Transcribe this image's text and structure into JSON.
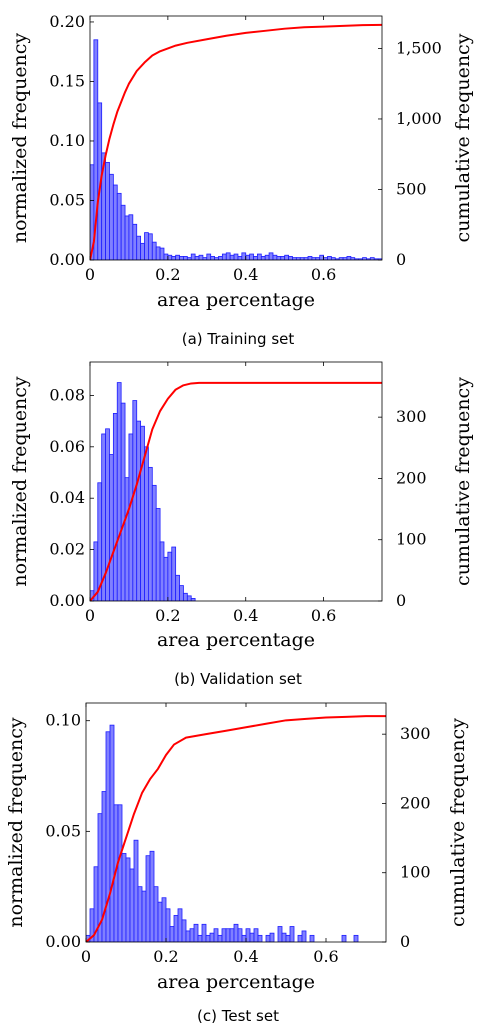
{
  "style": {
    "bar_fill": "#8080ff",
    "bar_stroke": "#1c1cff",
    "cumulative_line": "#ff0000"
  },
  "chart_data": [
    {
      "type": "bar",
      "caption": "(a) Training set",
      "xlabel": "area percentage",
      "ylabel": "normalized frequency",
      "y2label": "cumulative frequency",
      "xlim": [
        0,
        0.75
      ],
      "ylim": [
        0,
        0.205
      ],
      "y2lim": [
        0,
        1730
      ],
      "xticks": [
        0,
        0.2,
        0.4,
        0.6
      ],
      "xtick_labels": [
        "0",
        "0.2",
        "0.4",
        "0.6"
      ],
      "yticks": [
        0,
        0.05,
        0.1,
        0.15,
        0.2
      ],
      "ytick_labels": [
        "0.00",
        "0.05",
        "0.10",
        "0.15",
        "0.20"
      ],
      "y2ticks": [
        0,
        500,
        1000,
        1500
      ],
      "y2tick_labels": [
        "0",
        "500",
        "1,000",
        "1,500"
      ],
      "bin_width": 0.01,
      "series": [
        {
          "type": "bar",
          "x": [
            0.005,
            0.015,
            0.025,
            0.035,
            0.045,
            0.055,
            0.065,
            0.075,
            0.085,
            0.095,
            0.105,
            0.115,
            0.125,
            0.135,
            0.145,
            0.155,
            0.165,
            0.175,
            0.185,
            0.195,
            0.205,
            0.215,
            0.225,
            0.235,
            0.245,
            0.255,
            0.265,
            0.275,
            0.285,
            0.295,
            0.305,
            0.315,
            0.325,
            0.335,
            0.345,
            0.355,
            0.365,
            0.375,
            0.385,
            0.395,
            0.405,
            0.415,
            0.425,
            0.435,
            0.445,
            0.455,
            0.465,
            0.475,
            0.485,
            0.495,
            0.505,
            0.515,
            0.525,
            0.535,
            0.545,
            0.555,
            0.565,
            0.575,
            0.585,
            0.595,
            0.605,
            0.615,
            0.625,
            0.635,
            0.645,
            0.655,
            0.665,
            0.675,
            0.685,
            0.695,
            0.705,
            0.715,
            0.725,
            0.735,
            0.745
          ],
          "values": [
            0.08,
            0.185,
            0.132,
            0.09,
            0.082,
            0.072,
            0.063,
            0.056,
            0.046,
            0.037,
            0.038,
            0.03,
            0.02,
            0.014,
            0.023,
            0.022,
            0.015,
            0.011,
            0.01,
            0.005,
            0.004,
            0.003,
            0.004,
            0.003,
            0.003,
            0.002,
            0.005,
            0.003,
            0.004,
            0.002,
            0.005,
            0.003,
            0.002,
            0.003,
            0.005,
            0.006,
            0.004,
            0.005,
            0.003,
            0.006,
            0.004,
            0.005,
            0.003,
            0.005,
            0.003,
            0.004,
            0.006,
            0.004,
            0.003,
            0.003,
            0.004,
            0.003,
            0.002,
            0.002,
            0.002,
            0.002,
            0.003,
            0.002,
            0.002,
            0.004,
            0.002,
            0.003,
            0.002,
            0.001,
            0.002,
            0.002,
            0.003,
            0.002,
            0.001,
            0.001,
            0.002,
            0.001,
            0.002,
            0.001,
            0.001
          ]
        },
        {
          "type": "line",
          "axis": "right",
          "x": [
            0,
            0.01,
            0.02,
            0.03,
            0.04,
            0.05,
            0.06,
            0.07,
            0.08,
            0.09,
            0.1,
            0.12,
            0.14,
            0.16,
            0.18,
            0.2,
            0.22,
            0.25,
            0.3,
            0.35,
            0.4,
            0.45,
            0.5,
            0.55,
            0.6,
            0.65,
            0.7,
            0.75
          ],
          "values": [
            0,
            130,
            410,
            600,
            740,
            860,
            960,
            1050,
            1120,
            1190,
            1250,
            1340,
            1400,
            1450,
            1480,
            1500,
            1520,
            1540,
            1565,
            1590,
            1610,
            1625,
            1640,
            1650,
            1655,
            1660,
            1665,
            1667
          ]
        }
      ]
    },
    {
      "type": "bar",
      "caption": "(b) Validation set",
      "xlabel": "area percentage",
      "ylabel": "normalized frequency",
      "y2label": "cumulative frequency",
      "xlim": [
        0,
        0.75
      ],
      "ylim": [
        0,
        0.093
      ],
      "y2lim": [
        0,
        390
      ],
      "xticks": [
        0,
        0.2,
        0.4,
        0.6
      ],
      "xtick_labels": [
        "0",
        "0.2",
        "0.4",
        "0.6"
      ],
      "yticks": [
        0,
        0.02,
        0.04,
        0.06,
        0.08
      ],
      "ytick_labels": [
        "0.00",
        "0.02",
        "0.04",
        "0.06",
        "0.08"
      ],
      "y2ticks": [
        0,
        100,
        200,
        300
      ],
      "y2tick_labels": [
        "0",
        "100",
        "200",
        "300"
      ],
      "bin_width": 0.01,
      "series": [
        {
          "type": "bar",
          "x": [
            0.005,
            0.015,
            0.025,
            0.035,
            0.045,
            0.055,
            0.065,
            0.075,
            0.085,
            0.095,
            0.105,
            0.115,
            0.125,
            0.135,
            0.145,
            0.155,
            0.165,
            0.175,
            0.185,
            0.195,
            0.205,
            0.215,
            0.225,
            0.235,
            0.245,
            0.255,
            0.265
          ],
          "values": [
            0.004,
            0.023,
            0.046,
            0.065,
            0.067,
            0.057,
            0.073,
            0.085,
            0.077,
            0.048,
            0.065,
            0.078,
            0.07,
            0.068,
            0.06,
            0.052,
            0.045,
            0.036,
            0.023,
            0.017,
            0.019,
            0.021,
            0.01,
            0.006,
            0.003,
            0.002,
            0.001
          ]
        },
        {
          "type": "line",
          "axis": "right",
          "x": [
            0,
            0.02,
            0.04,
            0.06,
            0.08,
            0.1,
            0.12,
            0.14,
            0.16,
            0.18,
            0.2,
            0.22,
            0.24,
            0.26,
            0.28,
            0.3,
            0.75
          ],
          "values": [
            0,
            15,
            45,
            80,
            115,
            150,
            190,
            235,
            280,
            310,
            330,
            345,
            352,
            355,
            356,
            356,
            356
          ]
        }
      ]
    },
    {
      "type": "bar",
      "caption": "(c) Test set",
      "xlabel": "area percentage",
      "ylabel": "normalized frequency",
      "y2label": "cumulative frequency",
      "xlim": [
        0,
        0.75
      ],
      "ylim": [
        0,
        0.108
      ],
      "y2lim": [
        0,
        345
      ],
      "xticks": [
        0,
        0.2,
        0.4,
        0.6
      ],
      "xtick_labels": [
        "0",
        "0.2",
        "0.4",
        "0.6"
      ],
      "yticks": [
        0,
        0.05,
        0.1
      ],
      "ytick_labels": [
        "0.00",
        "0.05",
        "0.10"
      ],
      "y2ticks": [
        0,
        100,
        200,
        300
      ],
      "y2tick_labels": [
        "0",
        "100",
        "200",
        "300"
      ],
      "bin_width": 0.01,
      "series": [
        {
          "type": "bar",
          "x": [
            0.005,
            0.015,
            0.025,
            0.035,
            0.045,
            0.055,
            0.065,
            0.075,
            0.085,
            0.095,
            0.105,
            0.115,
            0.125,
            0.135,
            0.145,
            0.155,
            0.165,
            0.175,
            0.185,
            0.195,
            0.205,
            0.215,
            0.225,
            0.235,
            0.245,
            0.255,
            0.265,
            0.275,
            0.285,
            0.295,
            0.305,
            0.315,
            0.325,
            0.335,
            0.345,
            0.355,
            0.365,
            0.375,
            0.385,
            0.395,
            0.405,
            0.415,
            0.425,
            0.435,
            0.445,
            0.455,
            0.465,
            0.475,
            0.485,
            0.495,
            0.505,
            0.515,
            0.525,
            0.535,
            0.545,
            0.555,
            0.565,
            0.575,
            0.585,
            0.595,
            0.605,
            0.615,
            0.625,
            0.635,
            0.645,
            0.655,
            0.665,
            0.675,
            0.685
          ],
          "values": [
            0.003,
            0.015,
            0.034,
            0.058,
            0.068,
            0.095,
            0.098,
            0.062,
            0.062,
            0.04,
            0.038,
            0.033,
            0.046,
            0.025,
            0.023,
            0.039,
            0.041,
            0.025,
            0.018,
            0.02,
            0.015,
            0.007,
            0.012,
            0.015,
            0.01,
            0.005,
            0.006,
            0.008,
            0.003,
            0.008,
            0.003,
            0.004,
            0.006,
            0.003,
            0.006,
            0.006,
            0.006,
            0.008,
            0.006,
            0.003,
            0.006,
            0.004,
            0.006,
            0.003,
            0.0,
            0.003,
            0.004,
            0.0,
            0.007,
            0.004,
            0.003,
            0.007,
            0.0,
            0.003,
            0.005,
            0.0,
            0.003,
            0.0,
            0.0,
            0.0,
            0.0,
            0.0,
            0.0,
            0.0,
            0.003,
            0.0,
            0.0,
            0.003,
            0.0
          ]
        },
        {
          "type": "line",
          "axis": "right",
          "x": [
            0,
            0.02,
            0.04,
            0.06,
            0.08,
            0.1,
            0.12,
            0.14,
            0.16,
            0.18,
            0.2,
            0.22,
            0.25,
            0.3,
            0.35,
            0.4,
            0.45,
            0.5,
            0.55,
            0.6,
            0.65,
            0.7,
            0.75
          ],
          "values": [
            0,
            10,
            32,
            70,
            115,
            150,
            185,
            215,
            235,
            250,
            270,
            285,
            295,
            300,
            305,
            310,
            315,
            320,
            322,
            324,
            325,
            326,
            326
          ]
        }
      ]
    }
  ]
}
